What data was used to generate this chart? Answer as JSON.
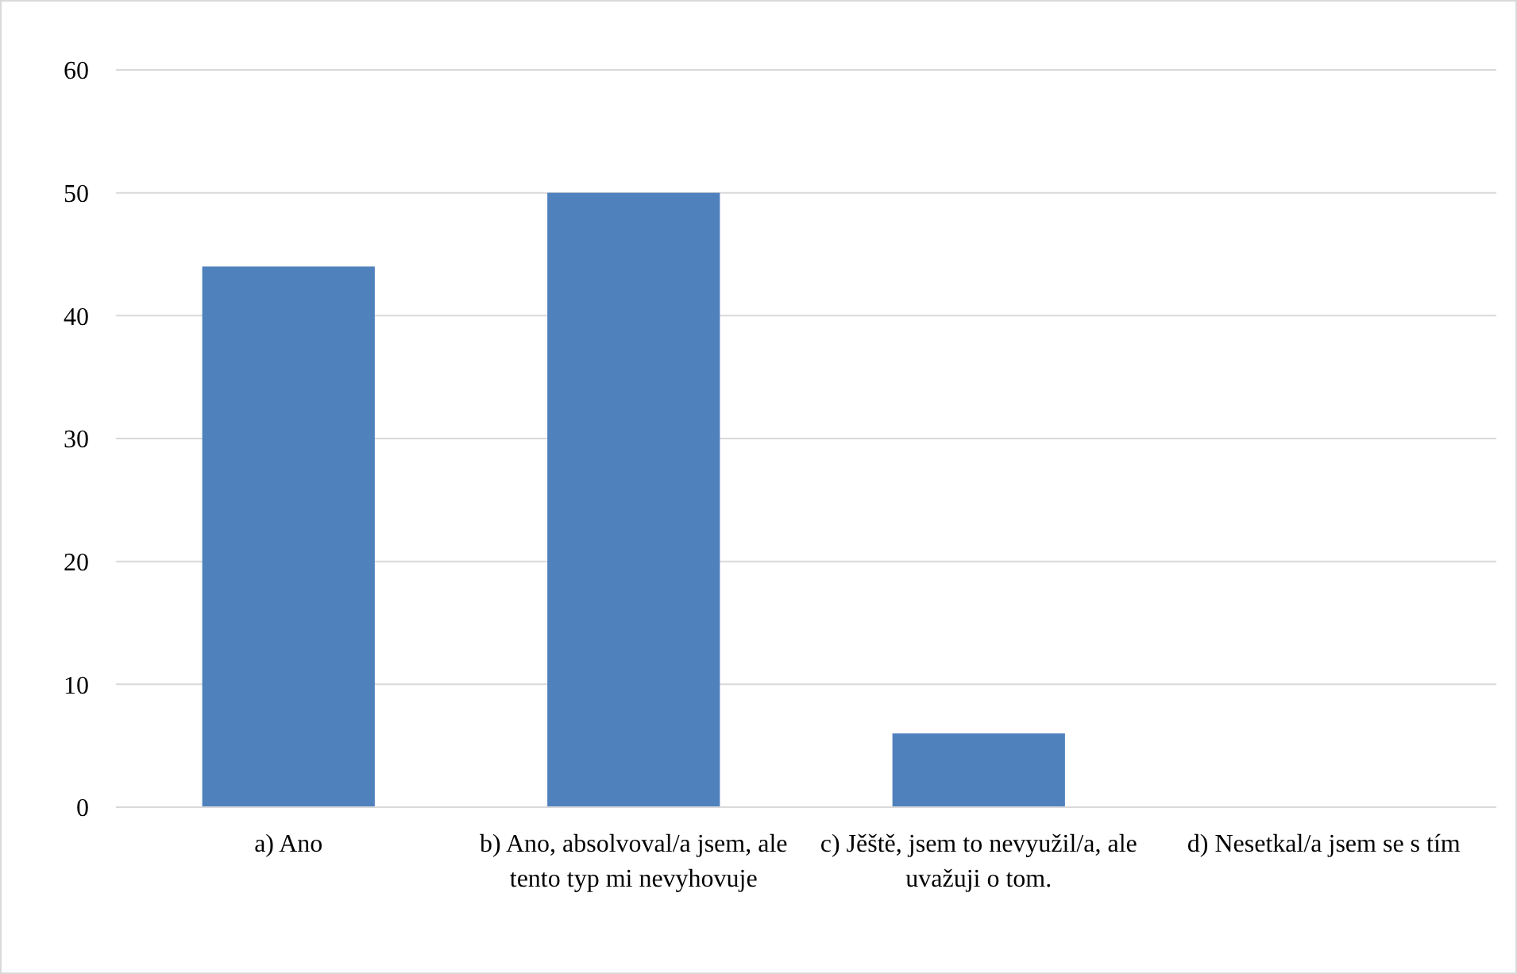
{
  "chart_data": {
    "type": "bar",
    "categories": [
      "a) Ano",
      "b) Ano, absolvoval/a jsem, ale tento typ mi nevyhovuje",
      "c) Jěště, jsem to nevyužil/a, ale uvažuji o tom.",
      "d) Nesetkal/a jsem se s tím"
    ],
    "values": [
      44,
      50,
      6,
      0
    ],
    "color": "#4f81bd",
    "ylim": [
      0,
      60
    ],
    "yticks": [
      0,
      10,
      20,
      30,
      40,
      50,
      60
    ],
    "grid": "y"
  }
}
